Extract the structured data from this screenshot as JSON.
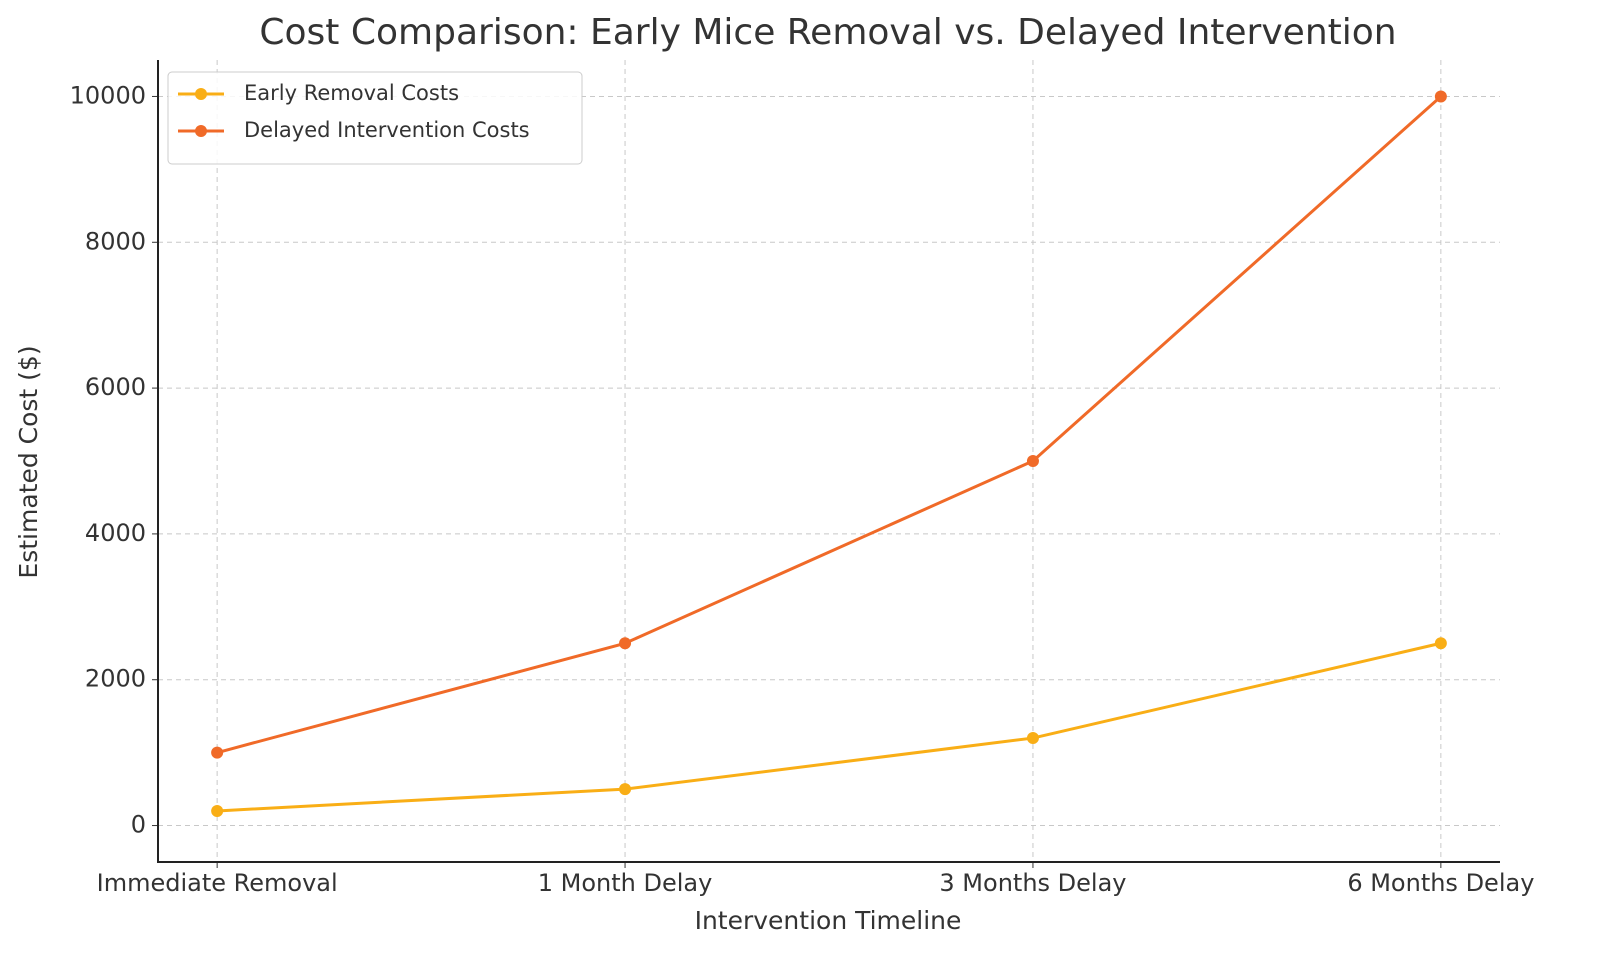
{
  "chart_data": {
    "type": "line",
    "title": "Cost Comparison: Early Mice Removal vs. Delayed Intervention",
    "xlabel": "Intervention Timeline",
    "ylabel": "Estimated Cost ($)",
    "categories": [
      "Immediate Removal",
      "1 Month Delay",
      "3 Months Delay",
      "6 Months Delay"
    ],
    "series": [
      {
        "name": "Early Removal Costs",
        "color": "#f9ae16",
        "values": [
          200,
          500,
          1200,
          2500
        ]
      },
      {
        "name": "Delayed Intervention Costs",
        "color": "#f06a28",
        "values": [
          1000,
          2500,
          5000,
          10000
        ]
      }
    ],
    "ylim": [
      -500,
      10500
    ],
    "yticks": [
      0,
      2000,
      4000,
      6000,
      8000,
      10000
    ],
    "grid": true,
    "legend": "upper left"
  }
}
